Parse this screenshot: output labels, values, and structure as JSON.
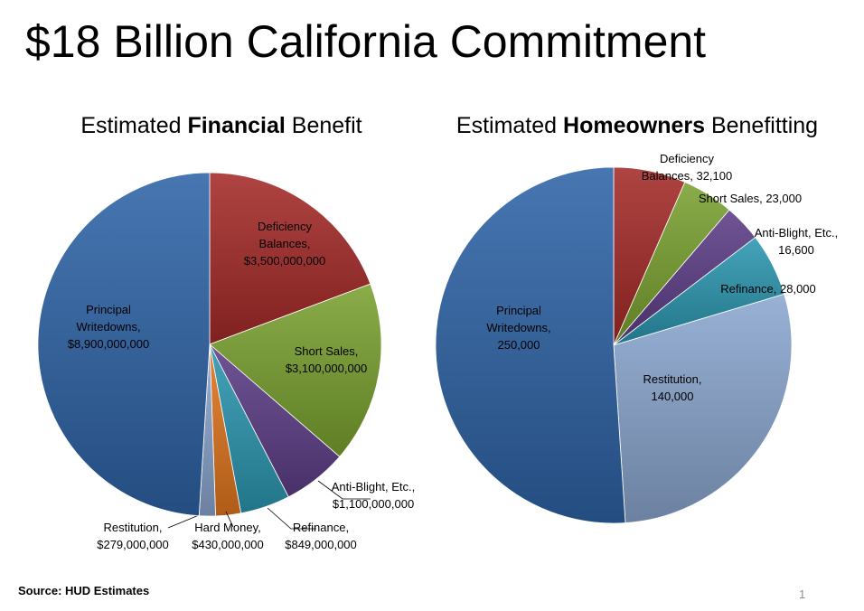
{
  "slide": {
    "title": "$18 Billion California Commitment",
    "source": "Source: HUD Estimates",
    "page_number": "1"
  },
  "chart_data": [
    {
      "type": "pie",
      "title_parts": [
        "Estimated ",
        "Financial",
        " Benefit"
      ],
      "slices": [
        {
          "label": "Deficiency Balances,",
          "value_label": "$3,500,000,000",
          "value": 3500000000,
          "color": "#a42a28"
        },
        {
          "label": "Short Sales,",
          "value_label": "$3,100,000,000",
          "value": 3100000000,
          "color": "#7aa130"
        },
        {
          "label": "Anti-Blight, Etc.,",
          "value_label": "$1,100,000,000",
          "value": 1100000000,
          "color": "#5d3d86"
        },
        {
          "label": "Refinance,",
          "value_label": "$849,000,000",
          "value": 849000000,
          "color": "#2c96b0"
        },
        {
          "label": "Hard Money,",
          "value_label": "$430,000,000",
          "value": 430000000,
          "color": "#e0761f"
        },
        {
          "label": "Restitution,",
          "value_label": "$279,000,000",
          "value": 279000000,
          "color": "#8aa6cf"
        },
        {
          "label": "Principal Writedowns,",
          "value_label": "$8,900,000,000",
          "value": 8900000000,
          "color": "#2e63a6"
        }
      ]
    },
    {
      "type": "pie",
      "title_parts": [
        "Estimated ",
        "Homeowners",
        " Benefitting"
      ],
      "slices": [
        {
          "label": "Deficiency Balances,",
          "value_label": "32,100",
          "value": 32100,
          "color": "#a42a28"
        },
        {
          "label": "Short Sales,",
          "value_label": "23,000",
          "value": 23000,
          "color": "#7aa130"
        },
        {
          "label": "Anti-Blight, Etc.,",
          "value_label": "16,600",
          "value": 16600,
          "color": "#5d3d86"
        },
        {
          "label": "Refinance,",
          "value_label": "28,000",
          "value": 28000,
          "color": "#2c96b0"
        },
        {
          "label": "Restitution,",
          "value_label": "140,000",
          "value": 140000,
          "color": "#8aa6cf"
        },
        {
          "label": "Principal Writedowns,",
          "value_label": "250,000",
          "value": 250000,
          "color": "#2e63a6"
        }
      ]
    }
  ]
}
